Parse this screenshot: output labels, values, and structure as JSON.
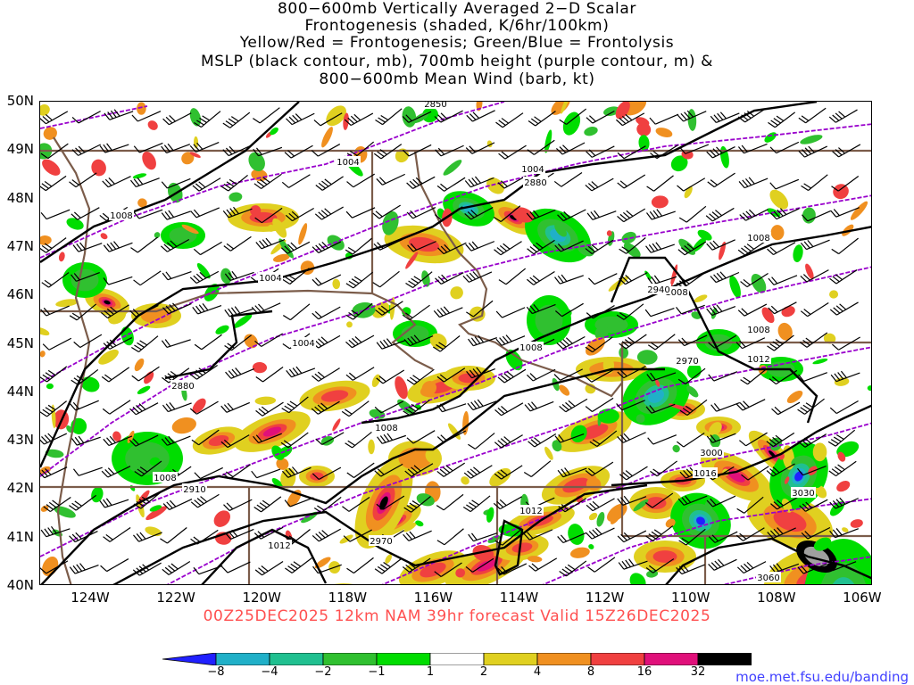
{
  "title": {
    "line1": "800−600mb Vertically Averaged 2−D Scalar",
    "line2": "Frontogenesis (shaded, K/6hr/100km)",
    "line3": "Yellow/Red = Frontogenesis;  Green/Blue = Frontolysis",
    "line4": "MSLP (black contour, mb), 700mb height (purple contour, m) &",
    "line5": "800−600mb Mean Wind (barb, kt)"
  },
  "map": {
    "lat_labels": [
      "50N",
      "49N",
      "48N",
      "47N",
      "46N",
      "45N",
      "44N",
      "43N",
      "42N",
      "41N",
      "40N"
    ],
    "lon_labels": [
      "124W",
      "122W",
      "120W",
      "118W",
      "116W",
      "114W",
      "112W",
      "110W",
      "108W",
      "106W"
    ],
    "mslp_labels": [
      "1004",
      "1004",
      "1004",
      "1004",
      "1008",
      "1008",
      "1008",
      "1008",
      "1008",
      "1008",
      "1012",
      "1012",
      "1012",
      "1016",
      "1008"
    ],
    "height_labels": [
      "2850",
      "2880",
      "2880",
      "2940",
      "2970",
      "3000",
      "2970",
      "3030",
      "3060",
      "2910"
    ],
    "colors": {
      "mslp_contour": "#000000",
      "height_contour": "#9900cc",
      "borders": "#7b5c4a",
      "wind_barb": "#000000"
    }
  },
  "valid_line": "00Z25DEC2025 12km NAM 39hr forecast Valid 15Z26DEC2025",
  "colorbar": {
    "ticks": [
      "−8",
      "−4",
      "−2",
      "−1",
      "1",
      "2",
      "4",
      "8",
      "16",
      "32"
    ],
    "colors": [
      "#2020ff",
      "#20b0c8",
      "#20c090",
      "#30c030",
      "#00dd00",
      "#ffffff",
      "#e0d020",
      "#f09020",
      "#f04040",
      "#e0107a",
      "#000000",
      "#a0a0a0"
    ]
  },
  "credit": "moe.met.fsu.edu/banding"
}
